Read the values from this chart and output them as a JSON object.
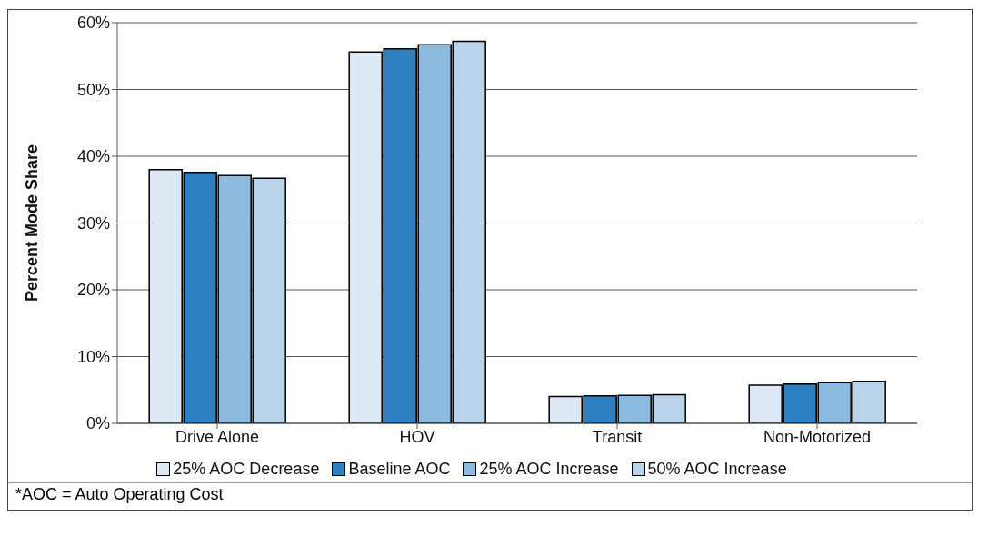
{
  "chart_data": {
    "type": "bar",
    "ylabel": "Percent Mode Share",
    "categories": [
      "Drive Alone",
      "HOV",
      "Transit",
      "Non-Motorized"
    ],
    "series": [
      {
        "name": "25% AOC Decrease",
        "color": "#dce9f4",
        "values": [
          38.0,
          55.6,
          4.0,
          5.7
        ]
      },
      {
        "name": "Baseline AOC",
        "color": "#2e7fbf",
        "values": [
          37.6,
          56.1,
          4.1,
          5.9
        ]
      },
      {
        "name": "25% AOC Increase",
        "color": "#8dbbe0",
        "values": [
          37.1,
          56.7,
          4.2,
          6.1
        ]
      },
      {
        "name": "50% AOC Increase",
        "color": "#b9d4ea",
        "values": [
          36.7,
          57.2,
          4.3,
          6.3
        ]
      }
    ],
    "ylim": [
      0,
      60
    ],
    "yticks": [
      {
        "value": 0,
        "label": "0%"
      },
      {
        "value": 10,
        "label": "10%"
      },
      {
        "value": 20,
        "label": "20%"
      },
      {
        "value": 30,
        "label": "30%"
      },
      {
        "value": 40,
        "label": "40%"
      },
      {
        "value": 50,
        "label": "50%"
      },
      {
        "value": 60,
        "label": "60%"
      }
    ],
    "grid": "y",
    "legend": "bottom",
    "annotations": [
      "*AOC = Auto Operating Cost"
    ]
  }
}
